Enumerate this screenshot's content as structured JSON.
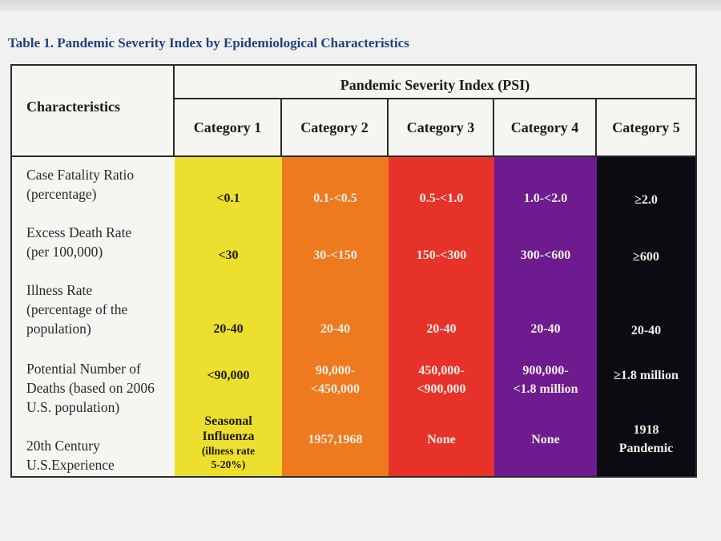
{
  "caption": "Table 1. Pandemic Severity Index by Epidemiological Characteristics",
  "header": {
    "characteristics": "Characteristics",
    "psi": "Pandemic Severity Index (PSI)",
    "categories": [
      "Category 1",
      "Category 2",
      "Category 3",
      "Category 4",
      "Category 5"
    ]
  },
  "category_colors": [
    "#ecdf2d",
    "#ee7a1f",
    "#e7322a",
    "#6d1b8e",
    "#0c0b12"
  ],
  "rows": [
    {
      "label_lines": [
        "Case Fatality Ratio",
        "(percentage)"
      ],
      "values": [
        "<0.1",
        "0.1-<0.5",
        "0.5-<1.0",
        "1.0-<2.0",
        "≥2.0"
      ]
    },
    {
      "label_lines": [
        "Excess Death Rate",
        "(per 100,000)"
      ],
      "values": [
        "<30",
        "30-<150",
        "150-<300",
        "300-<600",
        "≥600"
      ]
    },
    {
      "label_lines": [
        "Illness Rate",
        "(percentage of the",
        "population)"
      ],
      "values": [
        "20-40",
        "20-40",
        "20-40",
        "20-40",
        "20-40"
      ]
    },
    {
      "label_lines": [
        "Potential Number of",
        "Deaths (based on 2006",
        "U.S. population)"
      ],
      "values": [
        "<90,000",
        "90,000-\n<450,000",
        "450,000-\n<900,000",
        "900,000-\n<1.8 million",
        "≥1.8 million"
      ]
    },
    {
      "label_lines": [
        "20th Century",
        "U.S.Experience"
      ],
      "values": [
        "Seasonal\nInfluenza",
        "1957,1968",
        "None",
        "None",
        "1918\nPandemic"
      ],
      "cat1_note": "(illness rate\n5-20%)"
    }
  ]
}
